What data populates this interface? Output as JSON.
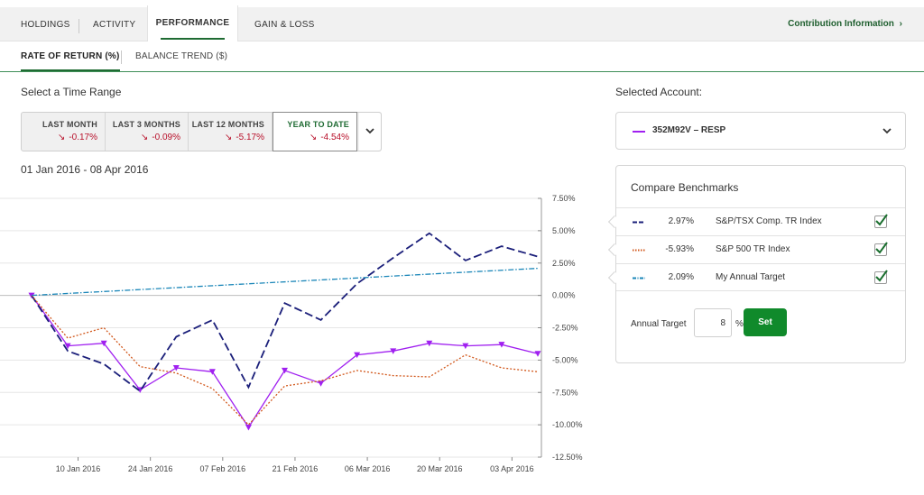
{
  "tabs": [
    {
      "label": "HOLDINGS"
    },
    {
      "label": "ACTIVITY"
    },
    {
      "label": "PERFORMANCE"
    },
    {
      "label": "GAIN & LOSS"
    }
  ],
  "contribution_link": "Contribution Information",
  "subtabs": [
    {
      "label": "RATE OF RETURN (%)"
    },
    {
      "label": "BALANCE TREND ($)"
    }
  ],
  "time_range": {
    "label": "Select a Time Range",
    "options": [
      {
        "label": "LAST MONTH",
        "value": "-0.17%"
      },
      {
        "label": "LAST 3 MONTHS",
        "value": "-0.09%"
      },
      {
        "label": "LAST 12 MONTHS",
        "value": "-5.17%"
      },
      {
        "label": "YEAR TO DATE",
        "value": "-4.54%"
      }
    ],
    "selected": "YEAR TO DATE"
  },
  "date_range": "01 Jan 2016 - 08 Apr 2016",
  "account": {
    "label": "Selected Account:",
    "selected": "352M92V – RESP",
    "color": "#a020f0"
  },
  "benchmarks": {
    "title": "Compare Benchmarks",
    "items": [
      {
        "value": "2.97%",
        "name": "S&P/TSX Comp. TR Index",
        "color": "#1b1f7a",
        "checked": true
      },
      {
        "value": "-5.93%",
        "name": "S&P 500 TR Index",
        "color": "#d2581c",
        "checked": true
      },
      {
        "value": "2.09%",
        "name": "My Annual Target",
        "color": "#1a86b8",
        "checked": true
      }
    ],
    "annual_target_label": "Annual Target",
    "annual_target_value": "8",
    "percent_sign": "%",
    "set_label": "Set"
  },
  "chart_data": {
    "type": "line",
    "x_ticks": [
      "10 Jan 2016",
      "24 Jan 2016",
      "07 Feb 2016",
      "21 Feb 2016",
      "06 Mar 2016",
      "20 Mar 2016",
      "03 Apr 2016"
    ],
    "y_ticks": [
      "7.50%",
      "5.00%",
      "2.50%",
      "0.00%",
      "-2.50%",
      "-5.00%",
      "-7.50%",
      "-10.00%",
      "-12.50%"
    ],
    "ylim": [
      -12.5,
      7.5
    ],
    "xlim": [
      "2016-01-01",
      "2016-04-08"
    ],
    "series": [
      {
        "name": "352M92V – RESP",
        "color": "#a020f0",
        "style": "solid-triangles",
        "points": [
          [
            "2016-01-01",
            0.0
          ],
          [
            "2016-01-08",
            -3.9
          ],
          [
            "2016-01-15",
            -3.7
          ],
          [
            "2016-01-22",
            -7.3
          ],
          [
            "2016-01-29",
            -5.6
          ],
          [
            "2016-02-05",
            -5.9
          ],
          [
            "2016-02-12",
            -10.2
          ],
          [
            "2016-02-19",
            -5.8
          ],
          [
            "2016-02-26",
            -6.8
          ],
          [
            "2016-03-04",
            -4.6
          ],
          [
            "2016-03-11",
            -4.3
          ],
          [
            "2016-03-18",
            -3.7
          ],
          [
            "2016-03-25",
            -3.9
          ],
          [
            "2016-04-01",
            -3.8
          ],
          [
            "2016-04-08",
            -4.5
          ]
        ]
      },
      {
        "name": "S&P/TSX Comp. TR Index",
        "color": "#1b1f7a",
        "style": "dashed",
        "points": [
          [
            "2016-01-01",
            0.0
          ],
          [
            "2016-01-08",
            -4.3
          ],
          [
            "2016-01-15",
            -5.3
          ],
          [
            "2016-01-22",
            -7.4
          ],
          [
            "2016-01-29",
            -3.2
          ],
          [
            "2016-02-05",
            -1.9
          ],
          [
            "2016-02-12",
            -7.1
          ],
          [
            "2016-02-19",
            -0.6
          ],
          [
            "2016-02-26",
            -1.9
          ],
          [
            "2016-03-04",
            0.9
          ],
          [
            "2016-03-11",
            2.9
          ],
          [
            "2016-03-18",
            4.8
          ],
          [
            "2016-03-25",
            2.7
          ],
          [
            "2016-04-01",
            3.8
          ],
          [
            "2016-04-08",
            3.0
          ]
        ]
      },
      {
        "name": "S&P 500 TR Index",
        "color": "#d2581c",
        "style": "dotted",
        "points": [
          [
            "2016-01-01",
            0.0
          ],
          [
            "2016-01-08",
            -3.3
          ],
          [
            "2016-01-15",
            -2.5
          ],
          [
            "2016-01-22",
            -5.5
          ],
          [
            "2016-01-29",
            -6.0
          ],
          [
            "2016-02-05",
            -7.2
          ],
          [
            "2016-02-12",
            -10.0
          ],
          [
            "2016-02-19",
            -7.0
          ],
          [
            "2016-02-26",
            -6.6
          ],
          [
            "2016-03-04",
            -5.8
          ],
          [
            "2016-03-11",
            -6.2
          ],
          [
            "2016-03-18",
            -6.3
          ],
          [
            "2016-03-25",
            -4.6
          ],
          [
            "2016-04-01",
            -5.6
          ],
          [
            "2016-04-08",
            -5.9
          ]
        ]
      },
      {
        "name": "My Annual Target",
        "color": "#1a86b8",
        "style": "dash-dot",
        "points": [
          [
            "2016-01-01",
            0.0
          ],
          [
            "2016-04-08",
            2.09
          ]
        ]
      }
    ]
  }
}
